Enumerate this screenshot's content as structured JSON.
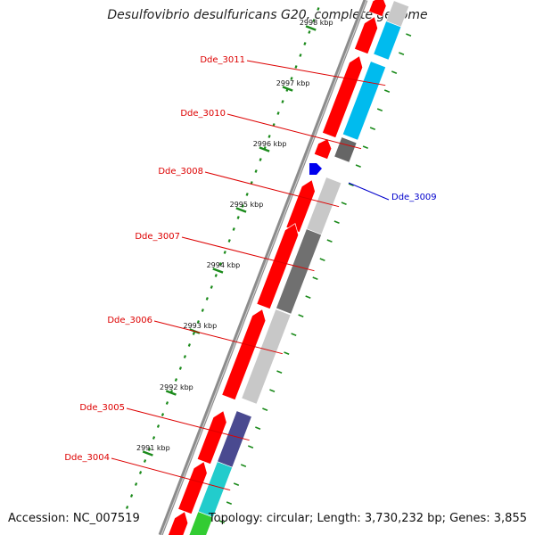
{
  "header": {
    "title": "Desulfovibrio desulfuricans G20, complete genome"
  },
  "footer": {
    "accession": "Accession: NC_007519",
    "topology": "Topology: circular; Length: 3,730,232 bp; Genes: 3,855"
  },
  "ticks": [
    {
      "label": "2991 kbp"
    },
    {
      "label": "2992 kbp"
    },
    {
      "label": "2993 kbp"
    },
    {
      "label": "2994 kbp"
    },
    {
      "label": "2995 kbp"
    },
    {
      "label": "2996 kbp"
    },
    {
      "label": "2997 kbp"
    },
    {
      "label": "2998 kbp"
    }
  ],
  "gene_labels": [
    {
      "name": "Dde_3011",
      "color": "#dd0000"
    },
    {
      "name": "Dde_3010",
      "color": "#dd0000"
    },
    {
      "name": "Dde_3008",
      "color": "#dd0000"
    },
    {
      "name": "Dde_3007",
      "color": "#dd0000"
    },
    {
      "name": "Dde_3006",
      "color": "#dd0000"
    },
    {
      "name": "Dde_3005",
      "color": "#dd0000"
    },
    {
      "name": "Dde_3004",
      "color": "#dd0000"
    },
    {
      "name": "Dde_3009",
      "color": "#0000cc"
    }
  ],
  "colors": {
    "forward_gene": "#ff0000",
    "reverse_gene": "#0000ee",
    "backbone": "#8c8c8c",
    "tick": "#1a8a1a",
    "cog_cyan": "#00bbee",
    "cog_dark_gray": "#666666",
    "cog_light_gray": "#c8c8c8",
    "cog_gray": "#707070",
    "cog_purple": "#4a4a90",
    "cog_teal": "#22cccc",
    "cog_green": "#33cc33"
  }
}
